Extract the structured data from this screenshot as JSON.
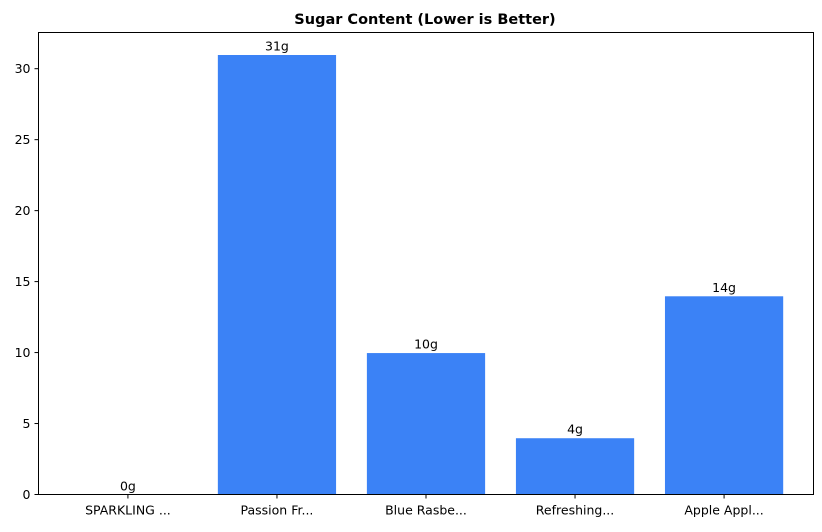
{
  "chart_data": {
    "type": "bar",
    "title": "Sugar Content (Lower is Better)",
    "xlabel": "",
    "ylabel": "",
    "categories": [
      "SPARKLING ...",
      "Passion Fr...",
      "Blue Rasbe...",
      "Refreshing...",
      "Apple Appl..."
    ],
    "values": [
      0,
      31,
      10,
      4,
      14
    ],
    "data_labels": [
      "0g",
      "31g",
      "10g",
      "4g",
      "14g"
    ],
    "ylim": [
      0,
      32.55
    ],
    "yticks": [
      0,
      5,
      10,
      15,
      20,
      25,
      30
    ],
    "grid": false,
    "bar_color": "#3b82f6",
    "bar_edge_color": "#ffffff"
  }
}
